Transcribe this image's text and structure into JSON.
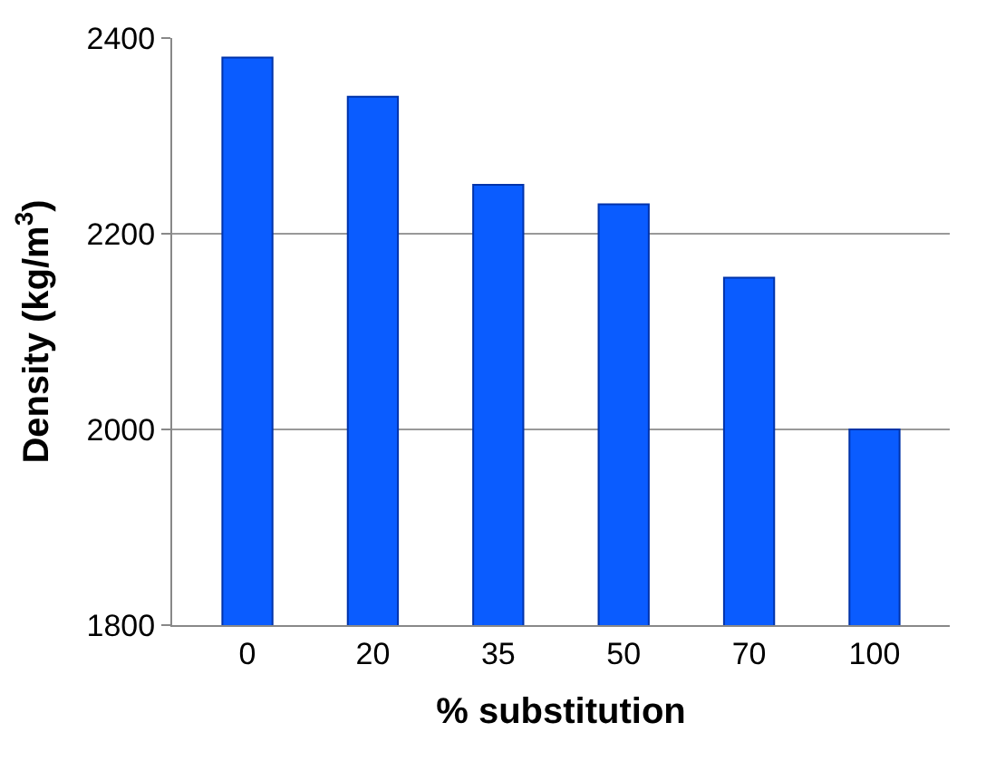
{
  "chart_data": {
    "type": "bar",
    "xlabel": "% substitution",
    "ylabel": "Density (kg/m$^{3}$)",
    "categories": [
      "0",
      "20",
      "35",
      "50",
      "70",
      "100"
    ],
    "values": [
      2380,
      2340,
      2250,
      2230,
      2155,
      2000
    ],
    "color": "#0a5cff",
    "ylim": [
      1800,
      2400
    ],
    "yticks": [
      1800,
      2000,
      2200,
      2400
    ],
    "grid": "y",
    "legend": false
  }
}
